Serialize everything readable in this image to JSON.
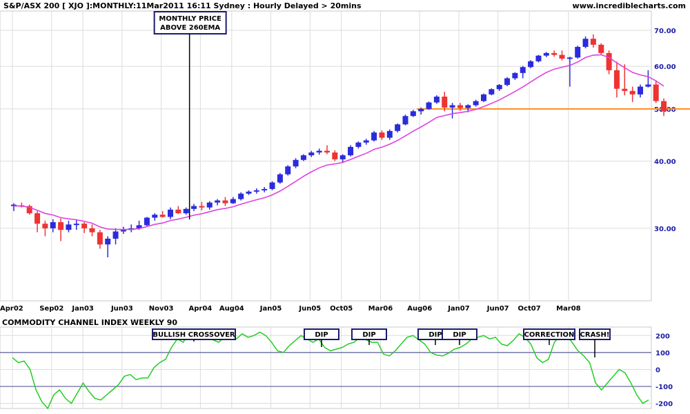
{
  "header": {
    "title": "S&P/ASX 200 [ XJO ]:MONTHLY:11Mar2011 16:11 Sydney : Hourly Delayed > 20mins",
    "site": "www.incrediblecharts.com"
  },
  "colors": {
    "up": "#2b2bdd",
    "down": "#ee3333",
    "ema": "#e040e0",
    "support": "#ff8c1a",
    "cci": "#22cc22",
    "cci_ref": "#5a5a9a",
    "ytick": "#1a1aa8",
    "annotation_border": "#1a1a6e"
  },
  "chart_data": [
    {
      "type": "candlestick",
      "title": "S&P/ASX 200 [ XJO ]:MONTHLY",
      "x_labels": [
        "Apr02",
        "Sep02",
        "Jan03",
        "Jun03",
        "Nov03",
        "Apr04",
        "Aug04",
        "Jan05",
        "Jun05",
        "Oct05",
        "Mar06",
        "Aug06",
        "Jan07",
        "Jun07",
        "Oct07",
        "Mar08"
      ],
      "y_ticks": [
        30,
        40,
        50,
        60,
        70
      ],
      "y_tick_labels": [
        "30.00",
        "40.00",
        "50.00",
        "60.00",
        "70.00"
      ],
      "ylim": [
        22,
        76
      ],
      "log_scale": true,
      "grid": true,
      "support_level": 50,
      "indicators": [
        "260EMA"
      ],
      "annotations": [
        {
          "text": "MONTHLY PRICE\nABOVE 260EMA",
          "x_label": "Nov03"
        }
      ],
      "series": [
        {
          "values": [
            [
              33.0,
              33.4,
              32.3,
              33.2
            ],
            [
              33.1,
              33.5,
              32.8,
              33.0
            ],
            [
              33.0,
              33.2,
              31.8,
              32.0
            ],
            [
              32.0,
              32.3,
              29.5,
              30.6
            ],
            [
              30.6,
              31.0,
              29.0,
              30.0
            ],
            [
              30.0,
              31.2,
              29.5,
              30.8
            ],
            [
              30.8,
              31.3,
              28.4,
              29.8
            ],
            [
              29.8,
              31.0,
              29.5,
              30.5
            ],
            [
              30.5,
              31.1,
              29.8,
              30.6
            ],
            [
              30.6,
              30.8,
              29.4,
              30.0
            ],
            [
              30.0,
              30.5,
              29.0,
              29.5
            ],
            [
              29.5,
              29.8,
              27.5,
              28.0
            ],
            [
              28.0,
              29.0,
              26.5,
              28.7
            ],
            [
              28.7,
              30.0,
              28.0,
              29.6
            ],
            [
              29.6,
              30.2,
              29.3,
              29.8
            ],
            [
              29.8,
              30.5,
              29.5,
              30.0
            ],
            [
              30.0,
              31.0,
              29.8,
              30.4
            ],
            [
              30.4,
              31.5,
              30.2,
              31.4
            ],
            [
              31.4,
              32.0,
              31.0,
              31.8
            ],
            [
              31.8,
              32.3,
              31.4,
              31.5
            ],
            [
              31.5,
              32.8,
              31.2,
              32.5
            ],
            [
              32.5,
              33.0,
              31.9,
              32.0
            ],
            [
              32.0,
              32.8,
              31.8,
              32.6
            ],
            [
              32.6,
              33.3,
              32.3,
              33.0
            ],
            [
              33.0,
              33.6,
              32.4,
              32.8
            ],
            [
              32.8,
              33.7,
              32.5,
              33.5
            ],
            [
              33.5,
              34.0,
              33.1,
              33.8
            ],
            [
              33.8,
              34.3,
              33.0,
              33.4
            ],
            [
              33.4,
              34.3,
              33.3,
              34.0
            ],
            [
              34.0,
              35.0,
              33.8,
              34.8
            ],
            [
              34.8,
              35.3,
              34.6,
              35.1
            ],
            [
              35.1,
              35.6,
              34.8,
              35.3
            ],
            [
              35.3,
              35.8,
              35.0,
              35.5
            ],
            [
              35.5,
              36.7,
              35.3,
              36.5
            ],
            [
              36.5,
              38.0,
              36.3,
              37.8
            ],
            [
              37.8,
              39.3,
              37.6,
              39.1
            ],
            [
              39.1,
              40.5,
              38.8,
              40.2
            ],
            [
              40.2,
              41.2,
              40.0,
              41.0
            ],
            [
              41.0,
              41.8,
              40.7,
              41.5
            ],
            [
              41.5,
              42.2,
              41.1,
              41.8
            ],
            [
              41.8,
              42.8,
              41.2,
              41.5
            ],
            [
              41.5,
              41.9,
              40.0,
              40.3
            ],
            [
              40.3,
              41.2,
              39.8,
              41.0
            ],
            [
              41.0,
              42.8,
              40.8,
              42.5
            ],
            [
              42.5,
              43.5,
              42.2,
              43.3
            ],
            [
              43.3,
              44.0,
              42.9,
              43.7
            ],
            [
              43.7,
              45.5,
              43.5,
              45.2
            ],
            [
              45.2,
              45.6,
              43.8,
              44.2
            ],
            [
              44.2,
              45.8,
              43.8,
              45.5
            ],
            [
              45.5,
              47.0,
              45.2,
              46.8
            ],
            [
              46.8,
              48.8,
              46.6,
              48.5
            ],
            [
              48.5,
              49.8,
              48.3,
              49.5
            ],
            [
              49.5,
              50.3,
              48.8,
              50.0
            ],
            [
              50.0,
              51.6,
              49.8,
              51.4
            ],
            [
              51.4,
              53.0,
              51.1,
              52.7
            ],
            [
              52.7,
              53.8,
              49.5,
              50.3
            ],
            [
              50.3,
              51.3,
              48.0,
              50.8
            ],
            [
              50.8,
              51.3,
              49.6,
              50.2
            ],
            [
              50.2,
              51.0,
              49.3,
              50.8
            ],
            [
              50.8,
              52.0,
              50.5,
              51.7
            ],
            [
              51.7,
              53.4,
              51.5,
              53.2
            ],
            [
              53.2,
              54.6,
              53.0,
              54.4
            ],
            [
              54.4,
              55.6,
              54.0,
              55.4
            ],
            [
              55.4,
              57.3,
              55.1,
              57.0
            ],
            [
              57.0,
              58.5,
              56.6,
              58.3
            ],
            [
              58.3,
              60.1,
              57.0,
              59.8
            ],
            [
              59.8,
              61.6,
              59.5,
              61.3
            ],
            [
              61.3,
              63.0,
              61.0,
              62.8
            ],
            [
              62.8,
              63.8,
              62.4,
              63.5
            ],
            [
              63.5,
              64.2,
              62.5,
              63.0
            ],
            [
              63.0,
              64.2,
              61.5,
              62.0
            ],
            [
              62.0,
              62.5,
              55.0,
              62.3
            ],
            [
              62.3,
              65.5,
              62.0,
              65.2
            ],
            [
              65.2,
              68.2,
              64.8,
              67.5
            ],
            [
              67.5,
              68.8,
              65.0,
              65.8
            ],
            [
              65.8,
              66.2,
              63.0,
              63.5
            ],
            [
              63.5,
              64.2,
              58.0,
              59.0
            ],
            [
              59.0,
              61.2,
              52.5,
              54.5
            ],
            [
              54.5,
              60.5,
              53.0,
              54.0
            ],
            [
              54.0,
              55.0,
              51.5,
              53.2
            ],
            [
              53.2,
              55.5,
              52.5,
              55.0
            ],
            [
              55.0,
              59.0,
              54.8,
              55.5
            ],
            [
              55.5,
              56.5,
              51.3,
              51.7
            ],
            [
              51.7,
              52.3,
              48.5,
              49.5
            ]
          ]
        }
      ]
    },
    {
      "type": "line",
      "title": "COMMODITY CHANNEL INDEX WEEKLY 90",
      "y_ticks": [
        200,
        100,
        0,
        -100,
        -200
      ],
      "ylim": [
        -230,
        250
      ],
      "reference_lines": [
        100,
        -100
      ],
      "grid": true,
      "annotations": [
        "BULLISH CROSSOVER",
        "DIP",
        "DIP",
        "DIP",
        "DIP",
        "CORRECTION",
        "CRASH!"
      ],
      "series": [
        {
          "x_start_label": "Apr02",
          "values": [
            70,
            40,
            50,
            0,
            -120,
            -190,
            -230,
            -150,
            -120,
            -170,
            -200,
            -140,
            -80,
            -130,
            -170,
            -180,
            -150,
            -120,
            -90,
            -40,
            -30,
            -60,
            -50,
            -50,
            10,
            40,
            60,
            130,
            180,
            160,
            220,
            200,
            190,
            210,
            175,
            160,
            190,
            200,
            180,
            210,
            190,
            200,
            220,
            200,
            160,
            110,
            100,
            140,
            170,
            200,
            180,
            160,
            180,
            130,
            110,
            120,
            130,
            150,
            160,
            190,
            175,
            160,
            160,
            90,
            80,
            110,
            150,
            190,
            200,
            175,
            150,
            100,
            85,
            80,
            95,
            120,
            130,
            150,
            180,
            190,
            200,
            180,
            190,
            150,
            140,
            170,
            210,
            190,
            150,
            70,
            40,
            60,
            160,
            200,
            210,
            160,
            110,
            80,
            40,
            -80,
            -120,
            -80,
            -40,
            0,
            -20,
            -80,
            -150,
            -200,
            -180
          ]
        }
      ]
    }
  ]
}
